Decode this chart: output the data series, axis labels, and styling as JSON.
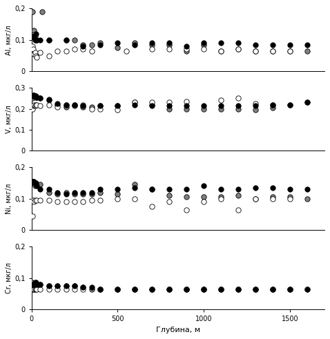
{
  "Al": {
    "gray": {
      "x": [
        5,
        10,
        15,
        20,
        25,
        30,
        60,
        100,
        200,
        250,
        300,
        350,
        400,
        500,
        600,
        700,
        800,
        900,
        1000,
        1100,
        1200,
        1300,
        1400,
        1500,
        1600
      ],
      "y": [
        0.19,
        0.11,
        0.13,
        0.11,
        0.1,
        0.1,
        0.19,
        0.1,
        0.1,
        0.1,
        0.085,
        0.085,
        0.09,
        0.075,
        0.09,
        0.085,
        0.085,
        0.065,
        0.085,
        0.065,
        0.07,
        0.065,
        0.065,
        0.065,
        0.065
      ]
    },
    "white": {
      "x": [
        5,
        10,
        15,
        20,
        25,
        30,
        50,
        100,
        150,
        200,
        250,
        300,
        350,
        550,
        700,
        800,
        900,
        1000,
        1100,
        1200,
        1300,
        1400,
        1500
      ],
      "y": [
        0.08,
        0.07,
        0.055,
        0.06,
        0.05,
        0.045,
        0.06,
        0.05,
        0.065,
        0.065,
        0.07,
        0.07,
        0.065,
        0.065,
        0.07,
        0.07,
        0.07,
        0.07,
        0.065,
        0.07,
        0.065,
        0.065,
        0.065
      ]
    },
    "black": {
      "x": [
        5,
        10,
        15,
        20,
        25,
        30,
        50,
        100,
        200,
        300,
        400,
        500,
        600,
        700,
        800,
        900,
        1000,
        1100,
        1200,
        1300,
        1400,
        1500,
        1600
      ],
      "y": [
        0.11,
        0.11,
        0.11,
        0.1,
        0.12,
        0.1,
        0.1,
        0.1,
        0.1,
        0.08,
        0.085,
        0.09,
        0.085,
        0.09,
        0.09,
        0.08,
        0.09,
        0.09,
        0.09,
        0.085,
        0.085,
        0.085,
        0.085
      ]
    },
    "ylim": [
      0,
      0.2
    ],
    "yticks": [
      0,
      0.1,
      0.2
    ],
    "ylabel": "Al, мкг/л"
  },
  "V": {
    "gray": {
      "x": [
        5,
        10,
        15,
        20,
        25,
        30,
        50,
        100,
        150,
        200,
        250,
        300,
        350,
        400,
        500,
        600,
        700,
        800,
        900,
        1000,
        1100,
        1200,
        1300,
        1400,
        1500,
        1600
      ],
      "y": [
        0.25,
        0.26,
        0.265,
        0.26,
        0.26,
        0.255,
        0.25,
        0.24,
        0.22,
        0.21,
        0.22,
        0.21,
        0.21,
        0.215,
        0.215,
        0.23,
        0.22,
        0.2,
        0.2,
        0.2,
        0.2,
        0.2,
        0.195,
        0.205,
        0.22,
        0.23
      ]
    },
    "white": {
      "x": [
        5,
        10,
        15,
        20,
        25,
        30,
        50,
        100,
        150,
        200,
        250,
        300,
        350,
        400,
        500,
        600,
        700,
        800,
        900,
        1100,
        1200,
        1300,
        1400
      ],
      "y": [
        0.2,
        0.215,
        0.22,
        0.215,
        0.22,
        0.22,
        0.215,
        0.22,
        0.21,
        0.22,
        0.215,
        0.22,
        0.2,
        0.2,
        0.195,
        0.23,
        0.23,
        0.23,
        0.235,
        0.24,
        0.25,
        0.225,
        0.22
      ]
    },
    "black": {
      "x": [
        5,
        10,
        15,
        20,
        25,
        30,
        50,
        100,
        150,
        200,
        250,
        300,
        400,
        500,
        600,
        700,
        800,
        900,
        1000,
        1100,
        1200,
        1300,
        1400,
        1500,
        1600
      ],
      "y": [
        0.26,
        0.265,
        0.265,
        0.26,
        0.255,
        0.255,
        0.25,
        0.245,
        0.225,
        0.22,
        0.22,
        0.215,
        0.215,
        0.215,
        0.22,
        0.215,
        0.215,
        0.215,
        0.215,
        0.215,
        0.215,
        0.215,
        0.22,
        0.22,
        0.23
      ]
    },
    "ylim": [
      0,
      0.3
    ],
    "yticks": [
      0,
      0.1,
      0.2,
      0.3
    ],
    "ylabel": "V, мкг/л"
  },
  "Ni": {
    "gray": {
      "x": [
        5,
        10,
        15,
        20,
        25,
        30,
        50,
        100,
        150,
        200,
        250,
        300,
        350,
        400,
        500,
        600,
        700,
        800,
        900,
        1000,
        1100,
        1200,
        1300,
        1400,
        1500,
        1600
      ],
      "y": [
        0.15,
        0.155,
        0.15,
        0.14,
        0.145,
        0.145,
        0.145,
        0.12,
        0.115,
        0.12,
        0.115,
        0.115,
        0.115,
        0.12,
        0.115,
        0.145,
        0.13,
        0.11,
        0.105,
        0.105,
        0.105,
        0.11,
        0.1,
        0.105,
        0.105,
        0.1
      ]
    },
    "white": {
      "x": [
        5,
        10,
        15,
        20,
        30,
        50,
        100,
        150,
        200,
        250,
        300,
        350,
        400,
        500,
        600,
        700,
        800,
        900,
        1000,
        1100,
        1200,
        1300,
        1400,
        1500
      ],
      "y": [
        0.045,
        0.095,
        0.09,
        0.095,
        0.095,
        0.095,
        0.095,
        0.09,
        0.09,
        0.09,
        0.09,
        0.095,
        0.095,
        0.1,
        0.1,
        0.075,
        0.09,
        0.065,
        0.09,
        0.1,
        0.065,
        0.1,
        0.1,
        0.1
      ]
    },
    "black": {
      "x": [
        5,
        10,
        15,
        20,
        25,
        30,
        50,
        100,
        150,
        200,
        250,
        300,
        350,
        400,
        500,
        600,
        700,
        800,
        900,
        1000,
        1100,
        1200,
        1300,
        1400,
        1500,
        1600
      ],
      "y": [
        0.155,
        0.155,
        0.155,
        0.15,
        0.15,
        0.14,
        0.13,
        0.13,
        0.12,
        0.115,
        0.12,
        0.12,
        0.12,
        0.13,
        0.13,
        0.135,
        0.13,
        0.13,
        0.13,
        0.14,
        0.13,
        0.13,
        0.135,
        0.135,
        0.13,
        0.13
      ]
    },
    "ylim": [
      0,
      0.2
    ],
    "yticks": [
      0,
      0.1,
      0.2
    ],
    "ylabel": "Ni, мкг/л"
  },
  "Cr": {
    "gray": {
      "x": [
        5,
        10,
        15,
        20,
        25,
        30,
        50,
        100,
        150,
        200,
        250,
        300,
        350,
        400,
        500,
        600,
        700,
        800,
        900,
        1000,
        1100,
        1200,
        1300,
        1400,
        1500,
        1600
      ],
      "y": [
        0.085,
        0.08,
        0.08,
        0.075,
        0.075,
        0.075,
        0.08,
        0.075,
        0.075,
        0.075,
        0.075,
        0.07,
        0.065,
        0.065,
        0.065,
        0.065,
        0.065,
        0.065,
        0.065,
        0.065,
        0.065,
        0.065,
        0.065,
        0.065,
        0.065,
        0.065
      ]
    },
    "white": {
      "x": [
        5,
        10,
        15,
        20,
        25,
        30,
        50,
        100,
        150,
        200,
        250,
        300,
        400,
        500,
        600,
        700,
        800,
        900,
        1000,
        1100,
        1200,
        1300,
        1400,
        1500
      ],
      "y": [
        0.065,
        0.065,
        0.065,
        0.065,
        0.065,
        0.065,
        0.065,
        0.065,
        0.065,
        0.065,
        0.065,
        0.065,
        0.065,
        0.065,
        0.065,
        0.065,
        0.065,
        0.065,
        0.065,
        0.065,
        0.065,
        0.065,
        0.065,
        0.065
      ]
    },
    "black": {
      "x": [
        5,
        10,
        15,
        20,
        25,
        30,
        50,
        100,
        150,
        200,
        250,
        300,
        350,
        400,
        500,
        600,
        700,
        800,
        900,
        1000,
        1100,
        1200,
        1300,
        1400,
        1500,
        1600
      ],
      "y": [
        0.08,
        0.08,
        0.08,
        0.085,
        0.085,
        0.08,
        0.08,
        0.075,
        0.075,
        0.075,
        0.075,
        0.07,
        0.07,
        0.065,
        0.065,
        0.065,
        0.065,
        0.065,
        0.065,
        0.065,
        0.065,
        0.065,
        0.065,
        0.065,
        0.065,
        0.065
      ]
    },
    "ylim": [
      0,
      0.2
    ],
    "yticks": [
      0,
      0.1,
      0.2
    ],
    "ylabel": "Cr, мкг/л"
  },
  "xlabel": "Глубина, м",
  "xlim": [
    0,
    1700
  ],
  "xticks": [
    0,
    500,
    1000,
    1500
  ],
  "gray_color": "#808080",
  "white_color": "#ffffff",
  "black_color": "#000000",
  "marker_size": 28,
  "edgecolor": "#000000",
  "linewidth": 0.6
}
